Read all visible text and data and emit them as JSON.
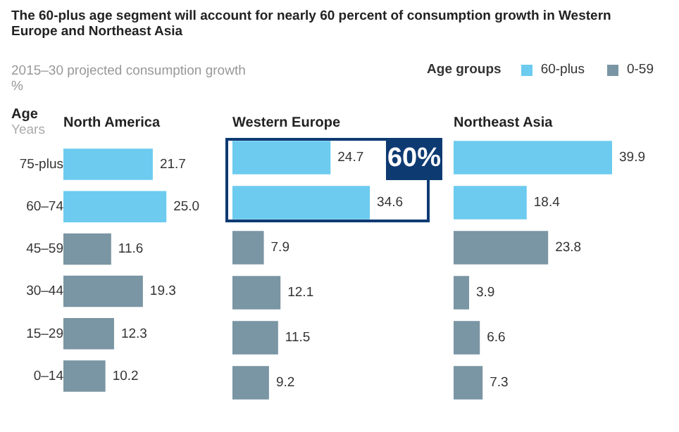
{
  "chart_data": [
    {
      "type": "bar",
      "orientation": "horizontal",
      "stacked": true,
      "title": "North America",
      "ylabel": "Age",
      "annotations": [
        "The 60-plus age segment will account for nearly 60 percent of consumption growth in Western Europe and Northeast Asia",
        "2015–30 projected consumption growth",
        "%",
        "Years"
      ],
      "categories": [
        "75-plus",
        "60–74",
        "45–59",
        "30–44",
        "15–29",
        "0–14"
      ],
      "tick_labels": "y",
      "grid": false,
      "series": [
        {
          "color": "#6ccbef",
          "values": [
            21.7,
            25.0,
            null,
            null,
            null,
            null
          ],
          "value_labels": [
            "21.7",
            "25.0",
            null,
            null,
            null,
            null
          ]
        },
        {
          "color": "#7a95a3",
          "values": [
            null,
            null,
            11.6,
            19.3,
            12.3,
            10.2
          ],
          "value_labels": [
            null,
            null,
            "11.6",
            "19.3",
            "12.3",
            "10.2"
          ]
        }
      ]
    },
    {
      "type": "bar",
      "orientation": "horizontal",
      "stacked": true,
      "title": "Western Europe",
      "annotations": [
        "60%"
      ],
      "tick_labels": false,
      "grid": false,
      "series": [
        {
          "color": "#6ccbef",
          "values": [
            24.7,
            34.6,
            null,
            null,
            null,
            null
          ],
          "value_labels": [
            "24.7",
            "34.6",
            null,
            null,
            null,
            null
          ]
        },
        {
          "color": "#7a95a3",
          "values": [
            null,
            null,
            7.9,
            12.1,
            11.5,
            9.2
          ],
          "value_labels": [
            null,
            null,
            "7.9",
            "12.1",
            "11.5",
            "9.2"
          ]
        }
      ]
    },
    {
      "type": "bar",
      "orientation": "horizontal",
      "stacked": true,
      "title": "Northeast Asia",
      "legend": "top",
      "legend_title": "Age groups",
      "tick_labels": false,
      "grid": false,
      "series": [
        {
          "name": "60-plus",
          "color": "#6ccbef",
          "values": [
            39.9,
            18.4,
            null,
            null,
            null,
            null
          ],
          "value_labels": [
            "39.9",
            "18.4",
            null,
            null,
            null,
            null
          ]
        },
        {
          "name": "0-59",
          "color": "#7a95a3",
          "values": [
            null,
            null,
            23.8,
            3.9,
            6.6,
            7.3
          ],
          "value_labels": [
            null,
            null,
            "23.8",
            "3.9",
            "6.6",
            "7.3"
          ]
        }
      ]
    }
  ]
}
